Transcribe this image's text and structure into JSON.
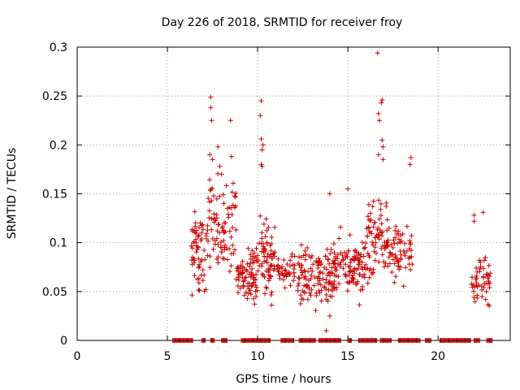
{
  "chart_data": {
    "type": "scatter",
    "title": "Day 226 of 2018, SRMTID for receiver froy",
    "xlabel": "GPS time / hours",
    "ylabel": "SRMTID / TECUs",
    "xlim": [
      0,
      24
    ],
    "ylim": [
      0,
      0.3
    ],
    "x_ticks": [
      0,
      5,
      10,
      15,
      20
    ],
    "x_tick_labels": [
      "0",
      "5",
      "10",
      "15",
      "20"
    ],
    "y_ticks": [
      0,
      0.05,
      0.1,
      0.15,
      0.2,
      0.25,
      0.3
    ],
    "y_tick_labels": [
      "0",
      "0.05",
      "0.1",
      "0.15",
      "0.2",
      "0.25",
      "0.3"
    ],
    "grid": true,
    "marker": "+",
    "series_color": "#cc0000",
    "series": [
      {
        "name": "SRMTID",
        "clusters": [
          {
            "x_start": 6.3,
            "x_end": 7.2,
            "y_min": 0.03,
            "y_max": 0.15,
            "count": 60
          },
          {
            "x_start": 7.2,
            "x_end": 8.8,
            "y_min": 0.05,
            "y_max": 0.19,
            "count": 90
          },
          {
            "x_start": 8.8,
            "x_end": 10.0,
            "y_min": 0.03,
            "y_max": 0.1,
            "count": 80
          },
          {
            "x_start": 10.0,
            "x_end": 11.0,
            "y_min": 0.03,
            "y_max": 0.14,
            "count": 70
          },
          {
            "x_start": 11.0,
            "x_end": 12.2,
            "y_min": 0.04,
            "y_max": 0.1,
            "count": 40
          },
          {
            "x_start": 12.2,
            "x_end": 14.2,
            "y_min": 0.02,
            "y_max": 0.11,
            "count": 120
          },
          {
            "x_start": 14.2,
            "x_end": 16.0,
            "y_min": 0.03,
            "y_max": 0.12,
            "count": 110
          },
          {
            "x_start": 16.0,
            "x_end": 17.3,
            "y_min": 0.05,
            "y_max": 0.16,
            "count": 80
          },
          {
            "x_start": 17.3,
            "x_end": 18.6,
            "y_min": 0.04,
            "y_max": 0.14,
            "count": 60
          },
          {
            "x_start": 21.8,
            "x_end": 22.9,
            "y_min": 0.025,
            "y_max": 0.1,
            "count": 50
          }
        ],
        "outliers": [
          {
            "x": 7.4,
            "y": 0.249
          },
          {
            "x": 7.4,
            "y": 0.238
          },
          {
            "x": 7.45,
            "y": 0.225
          },
          {
            "x": 7.35,
            "y": 0.19
          },
          {
            "x": 7.5,
            "y": 0.185
          },
          {
            "x": 7.8,
            "y": 0.198
          },
          {
            "x": 7.9,
            "y": 0.178
          },
          {
            "x": 8.0,
            "y": 0.17
          },
          {
            "x": 8.5,
            "y": 0.225
          },
          {
            "x": 8.55,
            "y": 0.188
          },
          {
            "x": 10.2,
            "y": 0.245
          },
          {
            "x": 10.15,
            "y": 0.23
          },
          {
            "x": 10.2,
            "y": 0.206
          },
          {
            "x": 10.3,
            "y": 0.2
          },
          {
            "x": 10.25,
            "y": 0.195
          },
          {
            "x": 10.2,
            "y": 0.18
          },
          {
            "x": 10.25,
            "y": 0.178
          },
          {
            "x": 14.0,
            "y": 0.15
          },
          {
            "x": 15.0,
            "y": 0.155
          },
          {
            "x": 16.65,
            "y": 0.294
          },
          {
            "x": 16.9,
            "y": 0.246
          },
          {
            "x": 16.85,
            "y": 0.243
          },
          {
            "x": 16.7,
            "y": 0.232
          },
          {
            "x": 16.75,
            "y": 0.225
          },
          {
            "x": 16.9,
            "y": 0.205
          },
          {
            "x": 16.95,
            "y": 0.198
          },
          {
            "x": 16.7,
            "y": 0.19
          },
          {
            "x": 16.95,
            "y": 0.185
          },
          {
            "x": 18.5,
            "y": 0.187
          },
          {
            "x": 18.45,
            "y": 0.18
          },
          {
            "x": 13.8,
            "y": 0.01
          },
          {
            "x": 14.0,
            "y": 0.025
          },
          {
            "x": 22.5,
            "y": 0.131
          },
          {
            "x": 22.0,
            "y": 0.128
          },
          {
            "x": 22.0,
            "y": 0.122
          }
        ]
      },
      {
        "name": "zero-level",
        "y": 0,
        "segments": [
          [
            5.3,
            6.4
          ],
          [
            6.9,
            7.1
          ],
          [
            7.4,
            7.6
          ],
          [
            8.0,
            8.3
          ],
          [
            9.1,
            10.7
          ],
          [
            11.3,
            12.0
          ],
          [
            12.3,
            13.2
          ],
          [
            13.4,
            14.6
          ],
          [
            15.0,
            15.2
          ],
          [
            15.6,
            16.6
          ],
          [
            16.8,
            17.4
          ],
          [
            17.8,
            19.0
          ],
          [
            19.3,
            19.6
          ],
          [
            20.1,
            21.8
          ],
          [
            22.0,
            22.3
          ],
          [
            22.7,
            23.0
          ]
        ]
      }
    ]
  }
}
